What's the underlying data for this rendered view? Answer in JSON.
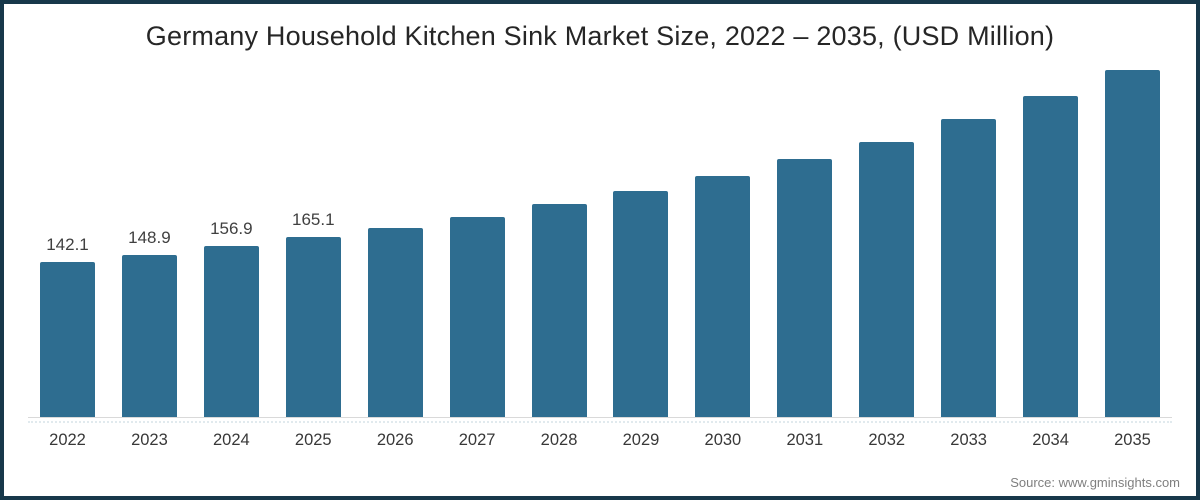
{
  "title": "Germany Household Kitchen Sink Market Size, 2022 – 2035, (USD Million)",
  "source_note": "Source: www.gminsights.com",
  "colors": {
    "frame_border": "#17384a",
    "bar": "#2e6d90",
    "axis_line": "#d9d9d9",
    "title_text": "#262626",
    "value_label_text": "#404040",
    "axis_label_text": "#383838",
    "source_text": "#7f7f7f",
    "background": "#ffffff"
  },
  "chart_data": {
    "type": "bar",
    "title": "Germany Household Kitchen Sink Market Size, 2022 – 2035, (USD Million)",
    "xlabel": "",
    "ylabel": "",
    "unit": "USD Million",
    "categories": [
      "2022",
      "2023",
      "2024",
      "2025",
      "2026",
      "2027",
      "2028",
      "2029",
      "2030",
      "2031",
      "2032",
      "2033",
      "2034",
      "2035"
    ],
    "values": [
      142.1,
      148.9,
      156.9,
      165.1,
      173.3,
      184.0,
      195.4,
      207.9,
      221.4,
      237.0,
      252.9,
      273.5,
      295.1,
      318.8
    ],
    "data_labels": [
      "142.1",
      "148.9",
      "156.9",
      "165.1",
      "",
      "",
      "",
      "",
      "",
      "",
      "",
      "",
      "",
      ""
    ],
    "ylim": [
      0,
      350
    ],
    "grid": false,
    "legend": false,
    "y_axis_visible": false,
    "bar_color": "#2e6d90"
  }
}
